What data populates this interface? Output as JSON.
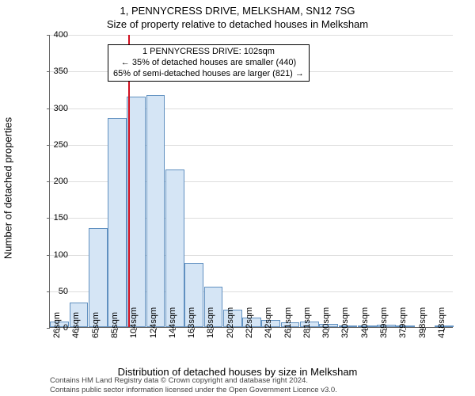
{
  "title_line1": "1, PENNYCRESS DRIVE, MELKSHAM, SN12 7SG",
  "title_line2": "Size of property relative to detached houses in Melksham",
  "y_axis_label": "Number of detached properties",
  "x_axis_label": "Distribution of detached houses by size in Melksham",
  "footer_line1": "Contains HM Land Registry data © Crown copyright and database right 2024.",
  "footer_line2": "Contains public sector information licensed under the Open Government Licence v3.0.",
  "chart": {
    "type": "histogram",
    "ylim": [
      0,
      400
    ],
    "ytick_step": 50,
    "background_color": "#ffffff",
    "grid_color": "#dddddd",
    "axis_color": "#666666",
    "bar_fill": "#d5e5f5",
    "bar_stroke": "#6090c0",
    "vline_color": "#d01020",
    "vline_x": 102,
    "x_categories": [
      "26sqm",
      "46sqm",
      "65sqm",
      "85sqm",
      "104sqm",
      "124sqm",
      "144sqm",
      "163sqm",
      "183sqm",
      "202sqm",
      "222sqm",
      "242sqm",
      "261sqm",
      "281sqm",
      "300sqm",
      "320sqm",
      "340sqm",
      "359sqm",
      "379sqm",
      "398sqm",
      "418sqm"
    ],
    "bar_values": [
      8,
      33,
      135,
      285,
      315,
      317,
      215,
      88,
      55,
      24,
      13,
      10,
      6,
      8,
      4,
      1,
      1,
      3,
      2,
      0,
      1
    ],
    "annotation": {
      "line1": "1 PENNYCRESS DRIVE: 102sqm",
      "line2": "← 35% of detached houses are smaller (440)",
      "line3": "65% of semi-detached houses are larger (821) →"
    }
  }
}
